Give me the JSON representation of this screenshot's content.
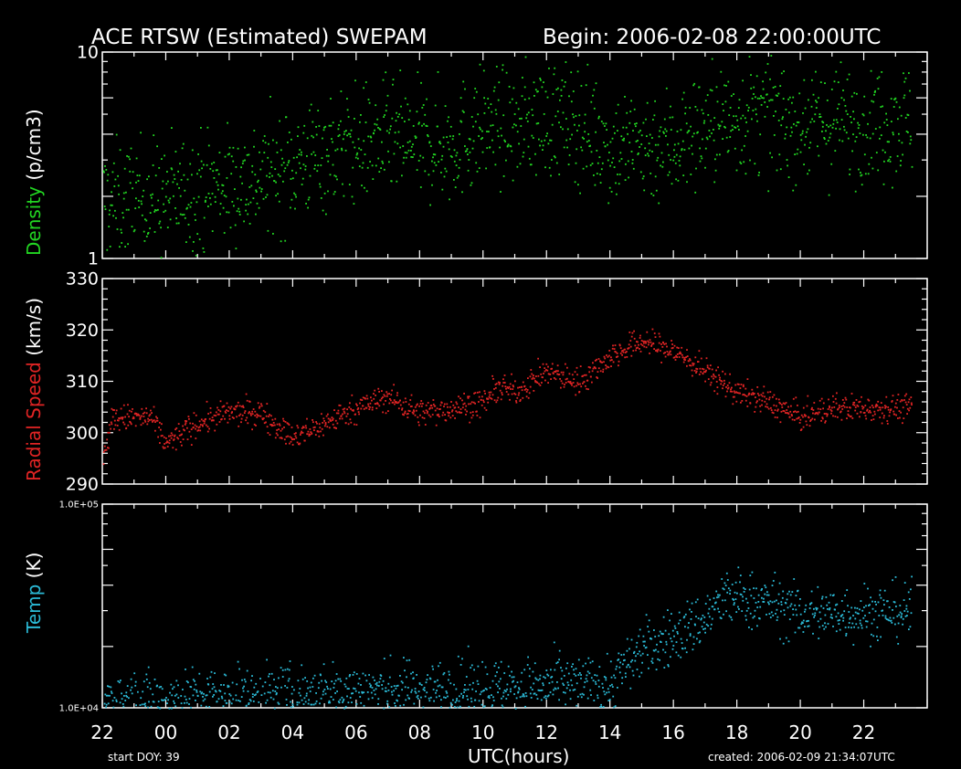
{
  "header": {
    "title": "ACE RTSW (Estimated) SWEPAM",
    "begin": "Begin: 2006-02-08 22:00:00UTC"
  },
  "footer": {
    "start_doy": "start DOY: 39",
    "xlabel": "UTC(hours)",
    "created": "created: 2006-02-09 21:34:07UTC"
  },
  "colors": {
    "density": "#22d622",
    "speed": "#e02424",
    "temp": "#2bbad6",
    "axes": "#ffffff",
    "background": "#000000"
  },
  "chart_data": [
    {
      "type": "scatter",
      "name": "density",
      "ylabel_parts": [
        "Density",
        "(p/cm3)"
      ],
      "yscale": "log",
      "ylim": [
        1,
        10
      ],
      "ytick_labels": [
        "1",
        "10"
      ],
      "xlim": [
        -2,
        24
      ],
      "x_unit": "hours since 2006-02-08 22:00 UTC",
      "trend": [
        [
          -2,
          1.9
        ],
        [
          0,
          2.0
        ],
        [
          1,
          2.2
        ],
        [
          2,
          2.3
        ],
        [
          3,
          2.5
        ],
        [
          4,
          2.9
        ],
        [
          5,
          3.3
        ],
        [
          6,
          3.6
        ],
        [
          7,
          3.8
        ],
        [
          8,
          3.6
        ],
        [
          9,
          3.6
        ],
        [
          10,
          4.4
        ],
        [
          11,
          4.6
        ],
        [
          12,
          4.8
        ],
        [
          13,
          4.5
        ],
        [
          14,
          3.5
        ],
        [
          15,
          3.6
        ],
        [
          16,
          3.6
        ],
        [
          17,
          4.4
        ],
        [
          18,
          4.8
        ],
        [
          19,
          5.0
        ],
        [
          20,
          4.5
        ],
        [
          21,
          4.6
        ],
        [
          23.5,
          4.8
        ]
      ],
      "spread": 0.14
    },
    {
      "type": "scatter",
      "name": "radial_speed",
      "ylabel_parts": [
        "Radial",
        "Speed",
        "(km/s)"
      ],
      "yscale": "linear",
      "ylim": [
        290,
        330
      ],
      "ytick_labels": [
        "290",
        "300",
        "310",
        "320",
        "330"
      ],
      "xlim": [
        -2,
        24
      ],
      "x_unit": "hours since 2006-02-08 22:00 UTC",
      "trend": [
        [
          -2,
          295
        ],
        [
          -1.7,
          303
        ],
        [
          -0.5,
          303
        ],
        [
          0,
          298
        ],
        [
          1,
          302
        ],
        [
          2,
          304
        ],
        [
          3,
          304
        ],
        [
          4,
          299
        ],
        [
          5,
          302
        ],
        [
          6,
          305
        ],
        [
          7,
          307
        ],
        [
          8,
          304
        ],
        [
          9,
          305
        ],
        [
          10,
          306
        ],
        [
          10.5,
          309
        ],
        [
          11,
          308
        ],
        [
          12,
          312
        ],
        [
          13,
          310
        ],
        [
          14,
          315
        ],
        [
          15,
          318
        ],
        [
          16,
          316
        ],
        [
          17,
          312
        ],
        [
          18,
          308
        ],
        [
          19,
          306
        ],
        [
          20,
          303
        ],
        [
          21,
          305
        ],
        [
          23,
          305
        ]
      ],
      "spread": 1.3
    },
    {
      "type": "scatter",
      "name": "temp",
      "ylabel_parts": [
        "Temp",
        "(K)"
      ],
      "yscale": "log",
      "ylim": [
        10000,
        100000
      ],
      "ytick_labels": [
        "1.0E+04",
        "1.0E+05"
      ],
      "xlim": [
        -2,
        24
      ],
      "x_unit": "hours since 2006-02-08 22:00 UTC",
      "xtick_labels": [
        "22",
        "00",
        "02",
        "04",
        "06",
        "08",
        "10",
        "12",
        "14",
        "16",
        "18",
        "20",
        "22"
      ],
      "trend": [
        [
          -2,
          10800
        ],
        [
          0,
          11200
        ],
        [
          2,
          11500
        ],
        [
          4,
          11800
        ],
        [
          6,
          12300
        ],
        [
          8,
          12400
        ],
        [
          10,
          12700
        ],
        [
          12,
          12900
        ],
        [
          14,
          13200
        ],
        [
          15,
          19500
        ],
        [
          16,
          22500
        ],
        [
          17,
          27500
        ],
        [
          17.5,
          34000
        ],
        [
          18,
          35000
        ],
        [
          19,
          33000
        ],
        [
          20,
          29000
        ],
        [
          21,
          29500
        ],
        [
          23.5,
          30000
        ]
      ],
      "spread": 0.07
    }
  ]
}
